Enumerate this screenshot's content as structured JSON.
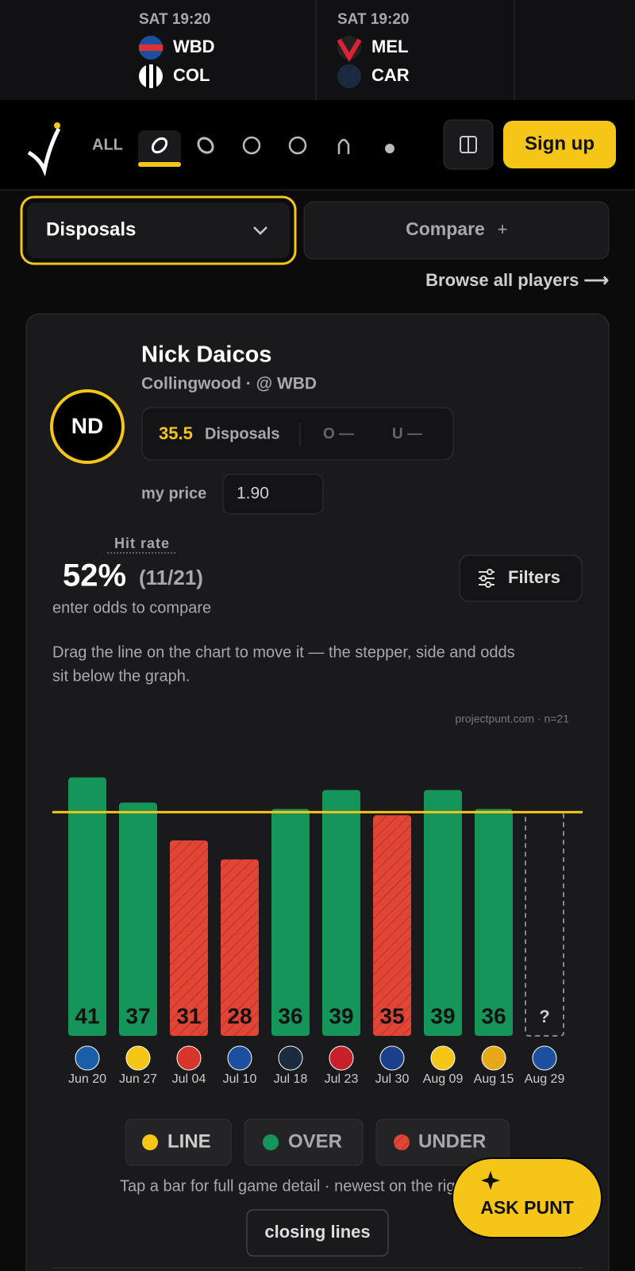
{
  "games": [
    {
      "time": "SAT 19:20",
      "home": "WBD",
      "away": "COL"
    },
    {
      "time": "SAT 19:20",
      "home": "MEL",
      "away": "CAR"
    }
  ],
  "nav": {
    "all": "ALL",
    "signup": "Sign up"
  },
  "controls": {
    "market": "Disposals",
    "compare": "Compare",
    "compare_icon": "+",
    "browse": "Browse all players ⟶"
  },
  "player": {
    "initials": "ND",
    "name": "Nick Daicos",
    "team": "Collingwood · @ WBD",
    "market": "Disposals",
    "over": "O —",
    "under": "U —",
    "price_label": "my price",
    "price": "1.90"
  },
  "hit": {
    "label": "Hit rate",
    "rate": "52%",
    "count": "(11/21)",
    "note": "enter odds to compare",
    "filters": "Filters",
    "hint_1": "Drag the line on the chart to move it — the stepper, side and odds",
    "hint_2": "sit below the graph."
  },
  "chart_data": {
    "type": "bar",
    "source": "projectpunt.com · n=21",
    "categories": [
      "Jun 20",
      "Jun 27",
      "Jul 04",
      "Jul 10",
      "Jul 18",
      "Jul 23",
      "Jul 30",
      "Aug 09",
      "Aug 15",
      "Aug 29"
    ],
    "values": [
      41,
      37,
      31,
      28,
      36,
      39,
      35,
      39,
      36,
      null
    ],
    "value_labels": [
      "41",
      "37",
      "31",
      "28",
      "36",
      "39",
      "35",
      "39",
      "36",
      "?"
    ],
    "line": 35.5,
    "line_color": "#f5c518",
    "over_color": "#16955a",
    "under_color": "#e04535",
    "ylim": [
      0,
      46
    ],
    "legend": [
      "LINE",
      "OVER",
      "UNDER"
    ]
  },
  "footer": {
    "tap_note": "Tap a bar for full game detail · newest on the right",
    "closing": "closing lines",
    "ask": "ASK PUNT"
  }
}
